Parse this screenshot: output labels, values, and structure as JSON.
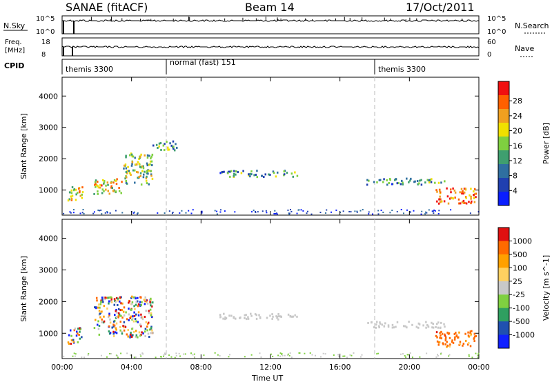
{
  "header": {
    "station": "SANAE (fitACF)",
    "beam": "Beam 14",
    "date": "17/Oct/2011"
  },
  "top_panels": {
    "nsky_label": "N.Sky",
    "freq_label_line1": "Freq.",
    "freq_label_line2": "[MHz]",
    "cpid_label": "CPID",
    "nsearch_label": "N.Search",
    "nave_label": "Nave",
    "nsky_ticks": [
      "10^5",
      "10^0"
    ],
    "nsearch_ticks": [
      "10^5",
      "10^0"
    ],
    "freq_ticks": [
      "18",
      "8"
    ],
    "nave_ticks": [
      "60",
      "0"
    ]
  },
  "cpid_segments": [
    {
      "start_hour": 0,
      "label": "themis 3300"
    },
    {
      "start_hour": 6,
      "label": "normal (fast) 151"
    },
    {
      "start_hour": 18,
      "label": "themis 3300"
    }
  ],
  "colors": {
    "power_scale": [
      "#0a1eff",
      "#2040b0",
      "#2f6fa0",
      "#3f9f6f",
      "#7fd040",
      "#f0e000",
      "#f0a020",
      "#ff6000",
      "#f01010"
    ],
    "velocity_scale": [
      "#e01010",
      "#ff6a00",
      "#ffa000",
      "#ffd060",
      "#c8c8c8",
      "#7fd040",
      "#2f9f60",
      "#2050b0",
      "#1020ff"
    ]
  },
  "chart_data": [
    {
      "type": "heatmap",
      "title": "",
      "xlabel": "Time UT",
      "ylabel": "Slant Range [km]",
      "x_ticks": [
        "00:00",
        "04:00",
        "08:00",
        "12:00",
        "16:00",
        "20:00",
        "00:00"
      ],
      "xlim_hours": [
        0,
        24
      ],
      "ylim": [
        200,
        4600
      ],
      "y_ticks": [
        1000,
        2000,
        3000,
        4000
      ],
      "colorbar": {
        "label": "Power [dB]",
        "ticks": [
          "4",
          "8",
          "12",
          "16",
          "20",
          "24",
          "28"
        ],
        "range": [
          0,
          30
        ]
      },
      "echo_regions": [
        {
          "t0": 0.3,
          "t1": 1.2,
          "r0": 700,
          "r1": 1200,
          "level": 0.35
        },
        {
          "t0": 1.8,
          "t1": 3.5,
          "r0": 900,
          "r1": 1400,
          "level": 0.4
        },
        {
          "t0": 3.5,
          "t1": 5.2,
          "r0": 1200,
          "r1": 2200,
          "level": 0.25
        },
        {
          "t0": 5.2,
          "t1": 6.6,
          "r0": 2300,
          "r1": 2600,
          "level": 0.1
        },
        {
          "t0": 9.0,
          "t1": 13.5,
          "r0": 1450,
          "r1": 1650,
          "level": 0.1
        },
        {
          "t0": 17.5,
          "t1": 22.0,
          "r0": 1200,
          "r1": 1400,
          "level": 0.1
        },
        {
          "t0": 21.4,
          "t1": 23.8,
          "r0": 600,
          "r1": 1100,
          "level": 0.6
        }
      ]
    },
    {
      "type": "heatmap",
      "title": "",
      "xlabel": "Time UT",
      "ylabel": "Slant Range [km]",
      "x_ticks": [
        "00:00",
        "04:00",
        "08:00",
        "12:00",
        "16:00",
        "20:00",
        "00:00"
      ],
      "xlim_hours": [
        0,
        24
      ],
      "ylim": [
        200,
        4600
      ],
      "y_ticks": [
        1000,
        2000,
        3000,
        4000
      ],
      "colorbar": {
        "label": "Velocity [m s^-1]",
        "ticks": [
          "1000",
          "500",
          "100",
          "25",
          "-25",
          "-100",
          "-500",
          "-1000"
        ],
        "range": [
          -1000,
          1000
        ]
      },
      "echo_regions": [
        {
          "t0": 0.3,
          "t1": 1.2,
          "r0": 700,
          "r1": 1200,
          "vel_class": "mixed"
        },
        {
          "t0": 1.8,
          "t1": 5.2,
          "r0": 900,
          "r1": 2200,
          "vel_class": "mixed"
        },
        {
          "t0": 9.0,
          "t1": 13.5,
          "r0": 1450,
          "r1": 1650,
          "vel_class": "ground"
        },
        {
          "t0": 17.5,
          "t1": 22.0,
          "r0": 1200,
          "r1": 1400,
          "vel_class": "ground"
        },
        {
          "t0": 21.4,
          "t1": 23.8,
          "r0": 600,
          "r1": 1100,
          "vel_class": "negative"
        }
      ]
    }
  ]
}
